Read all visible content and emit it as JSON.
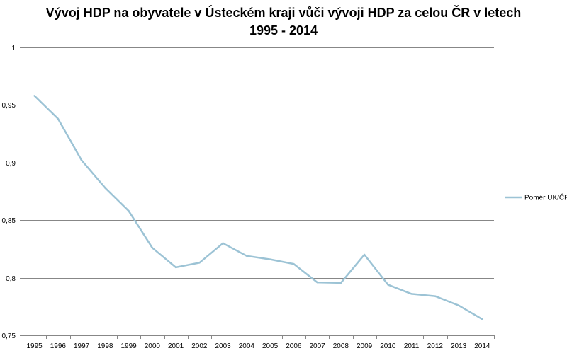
{
  "chart_data": {
    "type": "line",
    "title_line1": "Vývoj HDP na obyvatele v Ústeckém kraji vůči vývoji HDP za celou ČR v letech",
    "title_line2": "1995 - 2014",
    "categories": [
      "1995",
      "1996",
      "1997",
      "1998",
      "1999",
      "2000",
      "2001",
      "2002",
      "2003",
      "2004",
      "2005",
      "2006",
      "2007",
      "2008",
      "2009",
      "2010",
      "2011",
      "2012",
      "2013",
      "2014"
    ],
    "series": [
      {
        "name": "Poměr UK/ČR",
        "color": "#9cc3d5",
        "values": [
          0.958,
          0.938,
          0.902,
          0.878,
          0.858,
          0.826,
          0.809,
          0.813,
          0.83,
          0.819,
          0.816,
          0.812,
          0.796,
          0.7955,
          0.82,
          0.794,
          0.786,
          0.784,
          0.776,
          0.764
        ]
      }
    ],
    "ylim": [
      0.75,
      1
    ],
    "yticks": [
      0.75,
      0.8,
      0.85,
      0.9,
      0.95,
      1
    ],
    "ytick_labels": [
      "0,75",
      "0,8",
      "0,85",
      "0,9",
      "0,95",
      "1"
    ],
    "grid": true,
    "legend_position": "right"
  }
}
